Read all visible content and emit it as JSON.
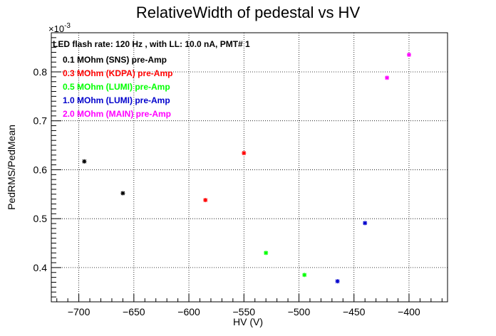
{
  "chart_data": {
    "type": "scatter",
    "title": "RelativeWidth of pedestal vs HV",
    "xlabel": "HV (V)",
    "ylabel": "PedRMS/PedMean",
    "y_exponent_label": "×10",
    "y_exponent_power": "-3",
    "xlim": [
      -725,
      -365
    ],
    "ylim": [
      0.33,
      0.88
    ],
    "x_ticks": [
      -700,
      -650,
      -600,
      -550,
      -500,
      -450,
      -400
    ],
    "x_tick_labels": [
      "−700",
      "−650",
      "−600",
      "−550",
      "−500",
      "−450",
      "−400"
    ],
    "y_ticks": [
      0.4,
      0.5,
      0.6,
      0.7,
      0.8
    ],
    "y_tick_labels": [
      "0.4",
      "0.5",
      "0.6",
      "0.7",
      "0.8"
    ],
    "grid": true,
    "legend_header": "LED flash rate: 120 Hz , with LL: 10.0 nA, PMT# 1",
    "legend_position": "top-left",
    "series": [
      {
        "name": "0.1 MOhm (SNS) pre-Amp",
        "color": "#000000",
        "points": [
          [
            -695,
            0.617
          ],
          [
            -660,
            0.552
          ]
        ]
      },
      {
        "name": "0.3 MOhm (KDPA) pre-Amp",
        "color": "#ff0000",
        "points": [
          [
            -585,
            0.538
          ],
          [
            -550,
            0.634
          ]
        ]
      },
      {
        "name": "0.5 MOhm (LUMI) pre-Amp",
        "color": "#00ff00",
        "points": [
          [
            -530,
            0.43
          ],
          [
            -495,
            0.385
          ]
        ]
      },
      {
        "name": "1.0 MOhm (LUMI) pre-Amp",
        "color": "#0000cc",
        "points": [
          [
            -465,
            0.372
          ],
          [
            -440,
            0.491
          ]
        ]
      },
      {
        "name": "2.0 MOhm (MAIN) pre-Amp",
        "color": "#ff00ff",
        "points": [
          [
            -420,
            0.788
          ],
          [
            -400,
            0.835
          ]
        ]
      }
    ]
  }
}
